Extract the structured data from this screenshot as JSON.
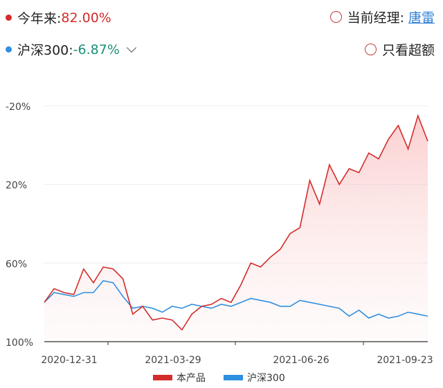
{
  "header": {
    "ytd_label": "今年来:",
    "ytd_value": "82.00%",
    "benchmark_label": "沪深300:",
    "benchmark_value": "-6.87%",
    "manager_label": "当前经理:",
    "manager_name": "唐雷",
    "excess_toggle_label": "只看超额"
  },
  "colors": {
    "product": "#d42b2b",
    "benchmark": "#2f8fe0",
    "positive": "#d42b2b",
    "negative": "#1a8f7a",
    "link": "#2f7fd6"
  },
  "icons": {
    "ytd_dot": "red-dot-icon",
    "benchmark_dot": "blue-dot-icon",
    "dropdown": "chevron-down-icon",
    "manager_radio": "radio-circle-icon",
    "excess_radio": "radio-circle-icon"
  },
  "chart_data": {
    "type": "line",
    "x_tick_labels": [
      "2020-12-31",
      "2021-03-29",
      "2021-06-26",
      "2021-09-23"
    ],
    "y_tick_labels": [
      "100%",
      "60%",
      "20%",
      "-20%"
    ],
    "ylim": [
      -20,
      100
    ],
    "yticks": [
      -20,
      20,
      60,
      100
    ],
    "grid": true,
    "legend_position": "bottom-center",
    "legend": [
      "本产品",
      "沪深300"
    ],
    "x": [
      "2020-12-31",
      "2021-01-07",
      "2021-01-14",
      "2021-01-21",
      "2021-01-28",
      "2021-02-04",
      "2021-02-11",
      "2021-02-18",
      "2021-02-25",
      "2021-03-04",
      "2021-03-11",
      "2021-03-18",
      "2021-03-25",
      "2021-04-01",
      "2021-04-08",
      "2021-04-15",
      "2021-04-22",
      "2021-04-29",
      "2021-05-06",
      "2021-05-13",
      "2021-05-20",
      "2021-05-27",
      "2021-06-03",
      "2021-06-10",
      "2021-06-17",
      "2021-06-24",
      "2021-07-01",
      "2021-07-08",
      "2021-07-15",
      "2021-07-22",
      "2021-07-29",
      "2021-08-05",
      "2021-08-12",
      "2021-08-19",
      "2021-08-26",
      "2021-09-02",
      "2021-09-09",
      "2021-09-16",
      "2021-09-23",
      "2021-09-30"
    ],
    "series": [
      {
        "name": "本产品",
        "values": [
          0,
          7,
          5,
          4,
          17,
          10,
          18,
          17,
          12,
          -6,
          -2,
          -9,
          -8,
          -9,
          -14,
          -6,
          -2,
          -1,
          2,
          0,
          9,
          20,
          18,
          23,
          27,
          35,
          38,
          62,
          50,
          70,
          60,
          68,
          66,
          76,
          73,
          83,
          90,
          78,
          95,
          82
        ]
      },
      {
        "name": "沪深300",
        "values": [
          0,
          5,
          4,
          3,
          5,
          5,
          11,
          10,
          3,
          -3,
          -2,
          -3,
          -5,
          -2,
          -3,
          -1,
          -2,
          -3,
          -1,
          -2,
          0,
          2,
          1,
          0,
          -2,
          -2,
          1,
          0,
          -1,
          -2,
          -3,
          -7,
          -4,
          -8,
          -6,
          -8,
          -7,
          -5,
          -6,
          -7
        ]
      }
    ]
  }
}
